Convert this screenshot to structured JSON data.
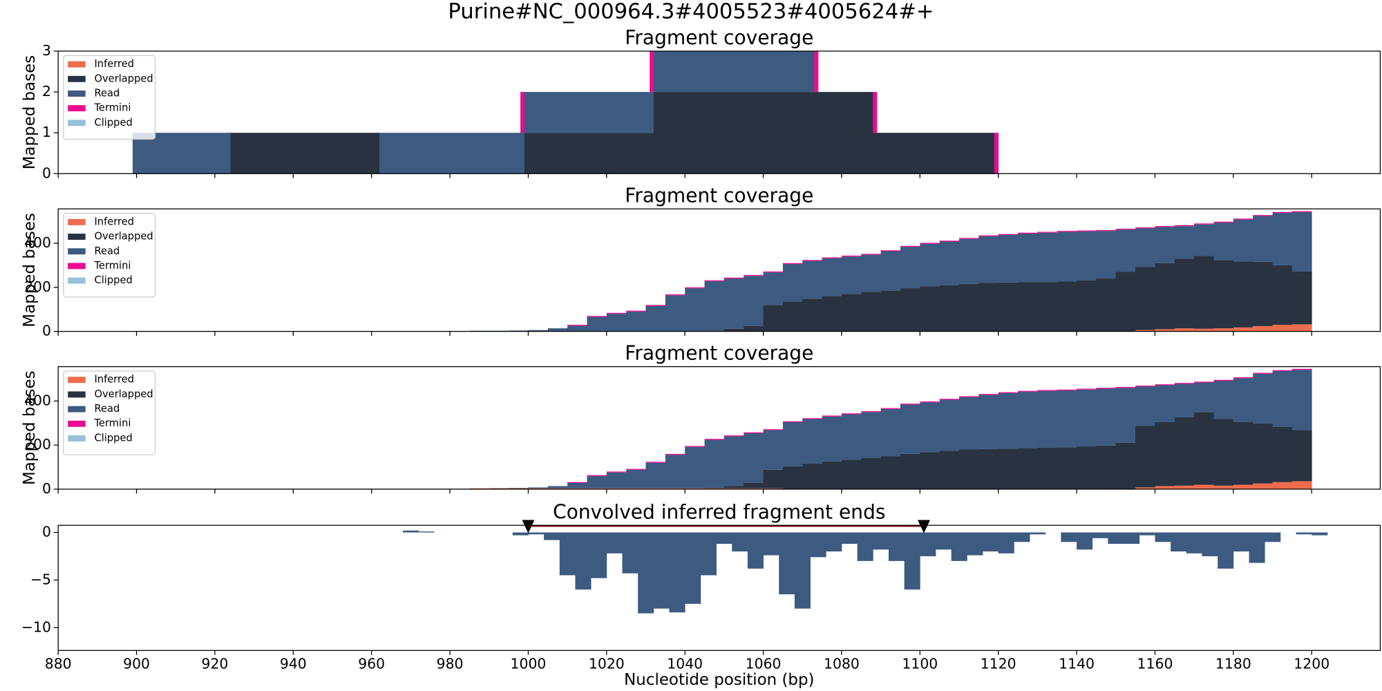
{
  "title": "Purine#NC_000964.3#4005523#4005624#+",
  "chart_data": [
    {
      "type": "histogram",
      "title": "Fragment coverage",
      "ylabel": "Mapped bases",
      "legend": "upper left",
      "xlim": [
        880,
        1217.5
      ],
      "ylim": [
        0,
        3
      ],
      "yticks": [
        0,
        1,
        2,
        3
      ],
      "bins": [
        899,
        924,
        962,
        998,
        999,
        1031,
        1032,
        1073,
        1074,
        1088,
        1089,
        1119,
        1120
      ],
      "series": [
        {
          "name": "Inferred",
          "color": "#ee6c4d",
          "values": [
            0,
            0,
            0,
            0,
            0,
            0,
            0,
            0,
            0,
            0,
            0,
            0
          ]
        },
        {
          "name": "Overlapped",
          "color": "#293241",
          "values": [
            0,
            1,
            0,
            0,
            1,
            1,
            2,
            2,
            2,
            1,
            1,
            0
          ]
        },
        {
          "name": "Read",
          "color": "#3d5a80",
          "values": [
            1,
            0,
            1,
            1,
            1,
            1,
            1,
            0,
            0,
            0,
            0,
            0
          ]
        },
        {
          "name": "Termini",
          "color": "#ed0a91",
          "values": [
            0,
            0,
            0,
            1,
            0,
            1,
            0,
            1,
            0,
            1,
            0,
            1
          ]
        },
        {
          "name": "Clipped",
          "color": "#98c1d9",
          "values": [
            0,
            0,
            0,
            0,
            0,
            0,
            0,
            0,
            0,
            0,
            0,
            0
          ]
        }
      ]
    },
    {
      "type": "histogram",
      "title": "Fragment coverage",
      "ylabel": "Mapped bases",
      "legend": "upper left",
      "xlim": [
        880,
        1217.5
      ],
      "ylim": [
        0,
        556
      ],
      "yticks": [
        0,
        200,
        400
      ],
      "bins": [
        900,
        905,
        910,
        915,
        920,
        925,
        930,
        935,
        940,
        945,
        950,
        955,
        960,
        965,
        970,
        975,
        980,
        985,
        990,
        995,
        1000,
        1005,
        1010,
        1015,
        1020,
        1025,
        1030,
        1035,
        1040,
        1045,
        1050,
        1055,
        1060,
        1065,
        1070,
        1075,
        1080,
        1085,
        1090,
        1095,
        1100,
        1105,
        1110,
        1115,
        1120,
        1125,
        1130,
        1135,
        1140,
        1145,
        1150,
        1155,
        1160,
        1165,
        1170,
        1175,
        1180,
        1185,
        1190,
        1195,
        1200
      ],
      "series": [
        {
          "name": "Inferred",
          "color": "#ee6c4d",
          "values": [
            0,
            0,
            0,
            0,
            0,
            0,
            0,
            0,
            0,
            0,
            0,
            0,
            0,
            0,
            0,
            0,
            0,
            0,
            0,
            0,
            0,
            0,
            0,
            0,
            0,
            0,
            0,
            0,
            0,
            0,
            0,
            0,
            0,
            0,
            0,
            0,
            0,
            0,
            0,
            0,
            0,
            0,
            0,
            0,
            0,
            0,
            0,
            0,
            0,
            0,
            0,
            6,
            10,
            14,
            12,
            14,
            18,
            24,
            30,
            32
          ]
        },
        {
          "name": "Overlapped",
          "color": "#293241",
          "values": [
            0,
            0,
            0,
            0,
            0,
            0,
            0,
            0,
            0,
            0,
            0,
            0,
            0,
            0,
            0,
            0,
            0,
            0,
            0,
            0,
            0,
            0,
            0,
            0,
            0,
            0,
            0,
            0,
            0,
            4,
            12,
            24,
            120,
            136,
            148,
            160,
            170,
            180,
            186,
            196,
            204,
            210,
            216,
            220,
            222,
            224,
            224,
            226,
            232,
            240,
            270,
            286,
            300,
            316,
            330,
            310,
            300,
            292,
            270,
            240
          ]
        },
        {
          "name": "Read",
          "color": "#3d5a80",
          "values": [
            2,
            2,
            2,
            2,
            2,
            2,
            2,
            2,
            2,
            2,
            2,
            2,
            2,
            2,
            2,
            2,
            2,
            3,
            3,
            4,
            6,
            14,
            26,
            66,
            80,
            90,
            116,
            164,
            196,
            224,
            228,
            228,
            148,
            170,
            172,
            172,
            170,
            168,
            178,
            188,
            194,
            198,
            204,
            212,
            216,
            220,
            224,
            226,
            222,
            216,
            192,
            176,
            164,
            148,
            144,
            170,
            190,
            208,
            238,
            270
          ]
        },
        {
          "name": "Termini",
          "color": "#ed0a91",
          "values": [
            0,
            0,
            0,
            0,
            0,
            0,
            0,
            0,
            0,
            0,
            0,
            0,
            0,
            0,
            0,
            0,
            0,
            0,
            0,
            0,
            0,
            0,
            4,
            4,
            4,
            4,
            4,
            4,
            4,
            4,
            4,
            4,
            4,
            4,
            4,
            4,
            4,
            4,
            4,
            4,
            4,
            4,
            4,
            4,
            4,
            4,
            4,
            4,
            4,
            4,
            4,
            4,
            4,
            4,
            4,
            4,
            4,
            4,
            4,
            4
          ]
        },
        {
          "name": "Clipped",
          "color": "#98c1d9",
          "values": [
            0,
            0,
            0,
            0,
            0,
            0,
            0,
            0,
            0,
            0,
            0,
            0,
            0,
            0,
            0,
            0,
            0,
            0,
            0,
            0,
            0,
            0,
            0,
            0,
            0,
            0,
            0,
            0,
            0,
            0,
            0,
            0,
            0,
            0,
            0,
            0,
            0,
            0,
            0,
            0,
            0,
            0,
            0,
            0,
            0,
            0,
            0,
            0,
            0,
            0,
            0,
            0,
            0,
            0,
            0,
            0,
            0,
            0,
            0,
            0
          ]
        }
      ]
    },
    {
      "type": "histogram",
      "title": "Fragment coverage",
      "ylabel": "Mapped bases",
      "legend": "upper left",
      "xlim": [
        880,
        1217.5
      ],
      "ylim": [
        0,
        556
      ],
      "yticks": [
        0,
        200,
        400
      ],
      "bins": [
        900,
        905,
        910,
        915,
        920,
        925,
        930,
        935,
        940,
        945,
        950,
        955,
        960,
        965,
        970,
        975,
        980,
        985,
        990,
        995,
        1000,
        1005,
        1010,
        1015,
        1020,
        1025,
        1030,
        1035,
        1040,
        1045,
        1050,
        1055,
        1060,
        1065,
        1070,
        1075,
        1080,
        1085,
        1090,
        1095,
        1100,
        1105,
        1110,
        1115,
        1120,
        1125,
        1130,
        1135,
        1140,
        1145,
        1150,
        1155,
        1160,
        1165,
        1170,
        1175,
        1180,
        1185,
        1190,
        1195,
        1200
      ],
      "series": [
        {
          "name": "Inferred",
          "color": "#ee6c4d",
          "values": [
            0,
            0,
            0,
            0,
            0,
            0,
            0,
            0,
            0,
            0,
            0,
            0,
            0,
            0,
            0,
            0,
            0,
            4,
            4,
            4,
            4,
            4,
            4,
            4,
            4,
            4,
            4,
            4,
            4,
            4,
            4,
            4,
            4,
            0,
            0,
            0,
            0,
            0,
            0,
            0,
            0,
            0,
            0,
            0,
            0,
            0,
            0,
            0,
            0,
            0,
            0,
            8,
            14,
            16,
            20,
            16,
            20,
            26,
            32,
            36
          ]
        },
        {
          "name": "Overlapped",
          "color": "#293241",
          "values": [
            0,
            0,
            0,
            0,
            0,
            0,
            0,
            0,
            0,
            0,
            0,
            0,
            0,
            0,
            0,
            0,
            0,
            0,
            0,
            0,
            0,
            0,
            0,
            0,
            0,
            0,
            0,
            0,
            0,
            2,
            10,
            24,
            84,
            104,
            116,
            126,
            134,
            142,
            150,
            160,
            168,
            174,
            180,
            182,
            184,
            186,
            188,
            190,
            194,
            198,
            210,
            280,
            290,
            310,
            330,
            302,
            286,
            272,
            250,
            232
          ]
        },
        {
          "name": "Read",
          "color": "#3d5a80",
          "values": [
            2,
            2,
            2,
            2,
            2,
            2,
            2,
            2,
            2,
            2,
            2,
            2,
            2,
            2,
            2,
            2,
            2,
            0,
            1,
            2,
            4,
            10,
            24,
            56,
            72,
            84,
            116,
            152,
            188,
            218,
            226,
            226,
            180,
            200,
            202,
            204,
            206,
            208,
            214,
            224,
            226,
            232,
            238,
            246,
            252,
            256,
            258,
            258,
            258,
            258,
            250,
            178,
            168,
            152,
            134,
            174,
            198,
            226,
            254,
            274
          ]
        },
        {
          "name": "Termini",
          "color": "#ed0a91",
          "values": [
            0,
            0,
            0,
            0,
            0,
            0,
            0,
            0,
            0,
            0,
            0,
            0,
            0,
            0,
            0,
            0,
            0,
            0,
            0,
            0,
            0,
            0,
            4,
            4,
            4,
            4,
            4,
            4,
            4,
            4,
            4,
            4,
            4,
            4,
            4,
            4,
            4,
            4,
            4,
            4,
            4,
            4,
            4,
            4,
            4,
            4,
            4,
            4,
            4,
            4,
            4,
            4,
            4,
            4,
            4,
            4,
            4,
            4,
            4,
            4
          ]
        },
        {
          "name": "Clipped",
          "color": "#98c1d9",
          "values": [
            0,
            0,
            0,
            0,
            0,
            0,
            0,
            0,
            0,
            0,
            0,
            0,
            0,
            0,
            0,
            0,
            0,
            0,
            0,
            0,
            0,
            0,
            0,
            0,
            0,
            0,
            0,
            0,
            0,
            0,
            0,
            0,
            0,
            0,
            0,
            0,
            0,
            0,
            0,
            0,
            0,
            0,
            0,
            0,
            0,
            0,
            0,
            0,
            0,
            0,
            0,
            0,
            0,
            0,
            0,
            0,
            0,
            0,
            0,
            0
          ]
        }
      ]
    },
    {
      "type": "histogram",
      "title": "Convolved inferred fragment ends",
      "xlabel": "Nucleotide position (bp)",
      "xlim": [
        880,
        1217.5
      ],
      "ylim": [
        -12.4,
        0.75
      ],
      "xticks": [
        880,
        900,
        920,
        940,
        960,
        980,
        1000,
        1020,
        1040,
        1060,
        1080,
        1100,
        1120,
        1140,
        1160,
        1180,
        1200
      ],
      "yticks": [
        {
          "value": -10,
          "label": "−10"
        },
        {
          "value": -5,
          "label": "−5"
        },
        0
      ],
      "color": "#3d5a80",
      "bins": [
        968,
        972,
        976,
        980,
        984,
        988,
        992,
        996,
        1000,
        1004,
        1008,
        1012,
        1016,
        1020,
        1024,
        1028,
        1032,
        1036,
        1040,
        1044,
        1048,
        1052,
        1056,
        1060,
        1064,
        1068,
        1072,
        1076,
        1080,
        1084,
        1088,
        1092,
        1096,
        1100,
        1104,
        1108,
        1112,
        1116,
        1120,
        1124,
        1128,
        1132,
        1136,
        1140,
        1144,
        1148,
        1152,
        1156,
        1160,
        1164,
        1168,
        1172,
        1176,
        1180,
        1184,
        1188,
        1192,
        1196,
        1200,
        1204
      ],
      "values": [
        0.2,
        0.1,
        0,
        0,
        0,
        0,
        0,
        -0.3,
        -0.2,
        -0.8,
        -4.5,
        -6,
        -4.8,
        -2.2,
        -4.3,
        -8.5,
        -8,
        -8.4,
        -7.5,
        -4.5,
        -1.2,
        -2,
        -3.8,
        -2.4,
        -6.5,
        -8,
        -2.6,
        -2,
        -1.2,
        -3,
        -1.8,
        -3,
        -6,
        -2.5,
        -1.8,
        -3,
        -2.4,
        -2,
        -2.2,
        -1,
        -0.2,
        0,
        -1,
        -1.8,
        -0.6,
        -1.2,
        -1.2,
        -0.3,
        -1,
        -2,
        -2.2,
        -2.5,
        -3.8,
        -2,
        -3.2,
        -1,
        0,
        -0.2,
        -0.3
      ],
      "markers": [
        1000,
        1101
      ],
      "marker_color": "#000000",
      "marker_line_color": "#8b0000"
    }
  ]
}
